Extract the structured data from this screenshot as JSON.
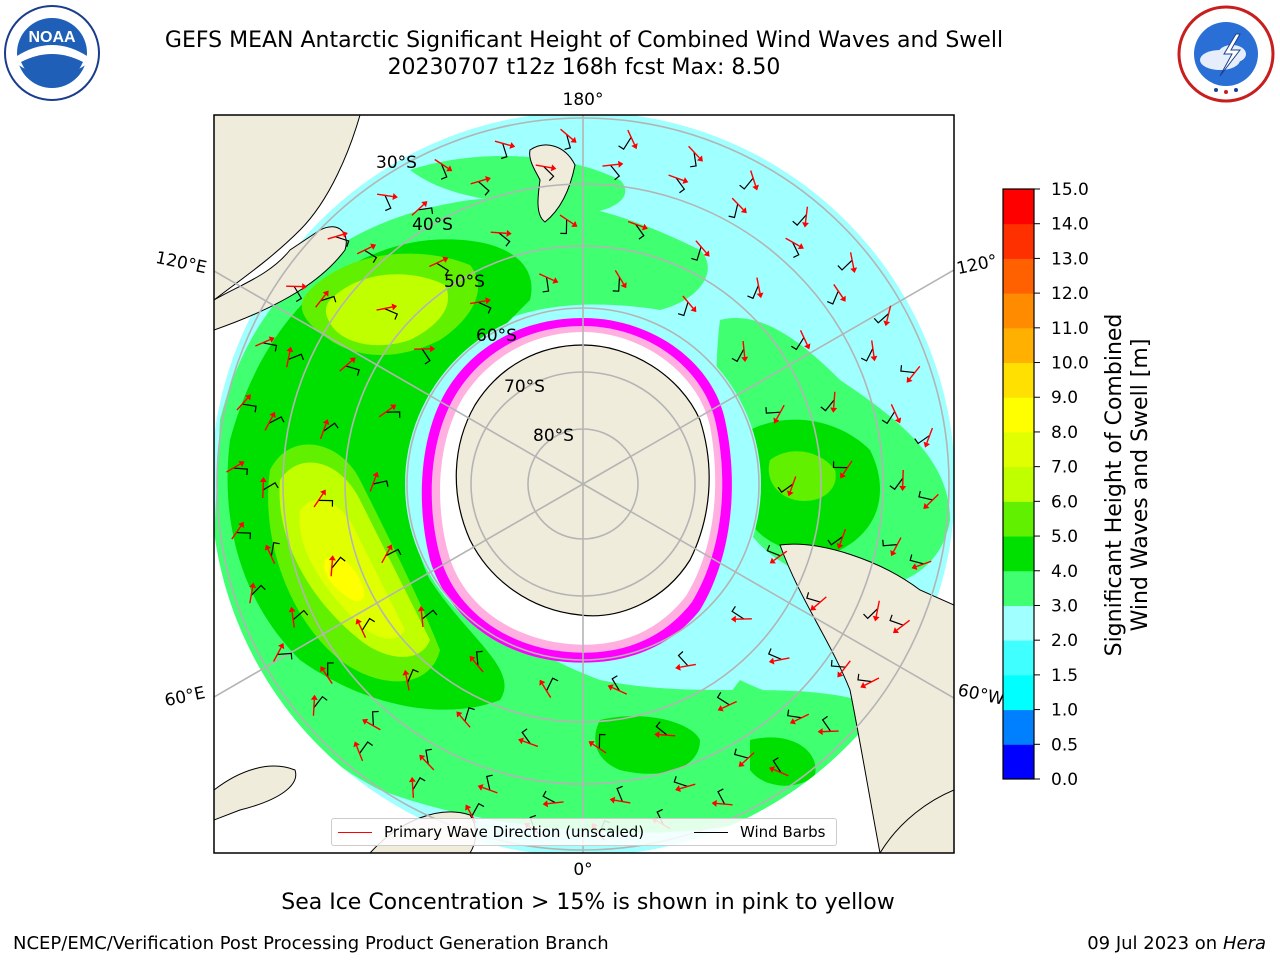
{
  "header": {
    "title_line1": "GEFS MEAN Antarctic Significant Height of Combined Wind Waves and Swell",
    "title_line2": "20230707 t12z 168h fcst   Max: 8.50"
  },
  "logos": {
    "left": "noaa-logo",
    "left_text": "NOAA",
    "left_ring_text": "NATIONAL OCEANIC AND ATMOSPHERIC ADMINISTRATION · U.S. DEPARTMENT OF COMMERCE",
    "right": "nws-logo",
    "right_ring_text": "NATIONAL WEATHER SERVICE"
  },
  "map": {
    "projection": "south-polar-stereographic",
    "longitude_labels": {
      "top": "180°",
      "upper_left": "120°E",
      "upper_right": "120°",
      "lower_left": "60°E",
      "lower_right": "60°W",
      "bottom": "0°"
    },
    "latitude_labels": [
      "30°S",
      "40°S",
      "50°S",
      "60°S",
      "70°S",
      "80°S"
    ],
    "colors": {
      "land": "#efecdc",
      "coast": "#000000",
      "grid": "#b4b4b4",
      "sea_ice_low": "#ff00ff",
      "sea_ice_high": "#ffd54a",
      "wave_arrow": "#ff0000",
      "wind_barb": "#000000"
    },
    "legend": {
      "wave_direction": "Primary Wave Direction (unscaled)",
      "wind_barbs": "Wind Barbs"
    }
  },
  "colorbar": {
    "label_line1": "Significant Height of Combined",
    "label_line2": "Wind Waves and Swell [m]",
    "ticks": [
      "0.0",
      "0.5",
      "1.0",
      "1.5",
      "2.0",
      "3.0",
      "4.0",
      "5.0",
      "6.0",
      "7.0",
      "8.0",
      "9.0",
      "10.0",
      "11.0",
      "12.0",
      "13.0",
      "14.0",
      "15.0"
    ],
    "colors": [
      "#0000ff",
      "#0080ff",
      "#00ffff",
      "#40ffff",
      "#a0ffff",
      "#40ff70",
      "#00e000",
      "#60f000",
      "#c0ff00",
      "#e0ff00",
      "#ffff00",
      "#ffe000",
      "#ffb000",
      "#ff8c00",
      "#ff6000",
      "#ff3000",
      "#ff0000"
    ]
  },
  "caption": "Sea Ice Concentration > 15% is shown in pink to yellow",
  "footer": {
    "left": "NCEP/EMC/Verification Post Processing Product Generation Branch",
    "right_date": "09 Jul 2023 on ",
    "right_host": "Hera"
  }
}
